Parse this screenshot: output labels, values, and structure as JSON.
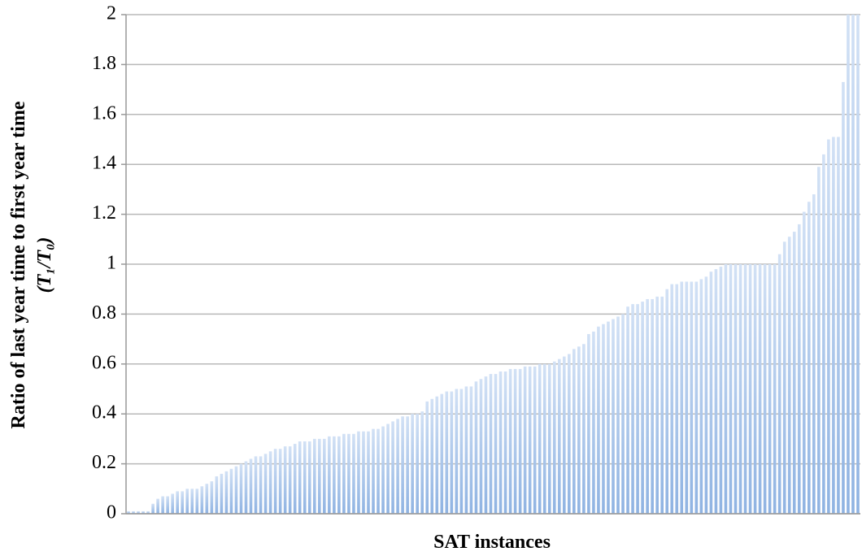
{
  "chart_data": {
    "type": "bar",
    "x_label": "SAT instances",
    "y_label": [
      "Ratio of last year time to first year time",
      "(T₁/T₀)"
    ],
    "color": "#8fb3e2",
    "ylim": [
      0,
      2
    ],
    "yticks": [
      0,
      0.2,
      0.4,
      0.6,
      0.8,
      1,
      1.2,
      1.4,
      1.6,
      1.8,
      2
    ],
    "grid": true,
    "values": [
      0.01,
      0.01,
      0.01,
      0.01,
      0.01,
      0.04,
      0.06,
      0.07,
      0.07,
      0.08,
      0.09,
      0.09,
      0.1,
      0.1,
      0.1,
      0.11,
      0.12,
      0.13,
      0.15,
      0.16,
      0.17,
      0.18,
      0.19,
      0.2,
      0.21,
      0.22,
      0.23,
      0.23,
      0.24,
      0.25,
      0.26,
      0.26,
      0.27,
      0.27,
      0.28,
      0.29,
      0.29,
      0.29,
      0.3,
      0.3,
      0.3,
      0.31,
      0.31,
      0.31,
      0.32,
      0.32,
      0.32,
      0.33,
      0.33,
      0.33,
      0.34,
      0.34,
      0.35,
      0.36,
      0.37,
      0.38,
      0.39,
      0.39,
      0.4,
      0.4,
      0.41,
      0.45,
      0.46,
      0.47,
      0.48,
      0.49,
      0.49,
      0.5,
      0.5,
      0.51,
      0.51,
      0.53,
      0.54,
      0.55,
      0.56,
      0.56,
      0.57,
      0.57,
      0.58,
      0.58,
      0.58,
      0.59,
      0.59,
      0.59,
      0.6,
      0.6,
      0.6,
      0.61,
      0.62,
      0.63,
      0.64,
      0.66,
      0.67,
      0.68,
      0.72,
      0.73,
      0.75,
      0.76,
      0.77,
      0.78,
      0.79,
      0.8,
      0.83,
      0.84,
      0.84,
      0.85,
      0.86,
      0.86,
      0.87,
      0.87,
      0.9,
      0.92,
      0.92,
      0.93,
      0.93,
      0.93,
      0.93,
      0.94,
      0.95,
      0.97,
      0.98,
      0.99,
      1,
      1,
      1,
      1,
      1,
      1,
      1,
      1,
      1,
      1,
      1,
      1.04,
      1.09,
      1.11,
      1.13,
      1.16,
      1.21,
      1.25,
      1.28,
      1.39,
      1.44,
      1.5,
      1.51,
      1.51,
      1.73,
      2,
      2,
      2
    ]
  }
}
